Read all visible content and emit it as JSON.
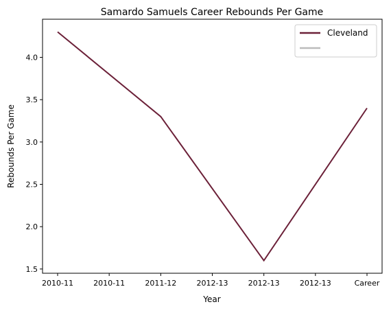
{
  "chart_data": {
    "type": "line",
    "title": "Samardo Samuels Career Rebounds Per Game",
    "xlabel": "Year",
    "ylabel": "Rebounds Per Game",
    "categories": [
      "2010-11",
      "2010-11",
      "2011-12",
      "2012-13",
      "2012-13",
      "2012-13",
      "Career"
    ],
    "ylim": [
      1.45,
      4.45
    ],
    "yticks": [
      "1.5",
      "2.0",
      "2.5",
      "3.0",
      "3.5",
      "4.0"
    ],
    "grid": false,
    "legend_position": "top-right",
    "series": [
      {
        "name": "Cleveland",
        "color": "#6b2038",
        "points": [
          {
            "x": 0,
            "y": 4.3
          },
          {
            "x": 2,
            "y": 3.3
          },
          {
            "x": 4,
            "y": 1.6
          },
          {
            "x": 6,
            "y": 3.4
          }
        ]
      },
      {
        "name": "",
        "color": "#bbbbbb",
        "points": []
      }
    ]
  }
}
